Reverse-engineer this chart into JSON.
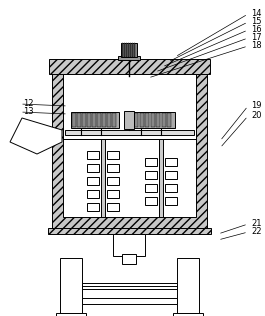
{
  "fig_width": 2.65,
  "fig_height": 3.16,
  "dpi": 100,
  "lc": "#000000",
  "bg": "#ffffff",
  "hatch_fc": "#c8c8c8",
  "motor_fc": "#888888",
  "coil_fc": "#aaaaaa",
  "pole_fc": "#cccccc",
  "shelf_fc": "#dddddd",
  "bottom_fc": "#cccccc",
  "ox": 52,
  "oy": 88,
  "ow": 155,
  "oh": 165,
  "wall": 11
}
